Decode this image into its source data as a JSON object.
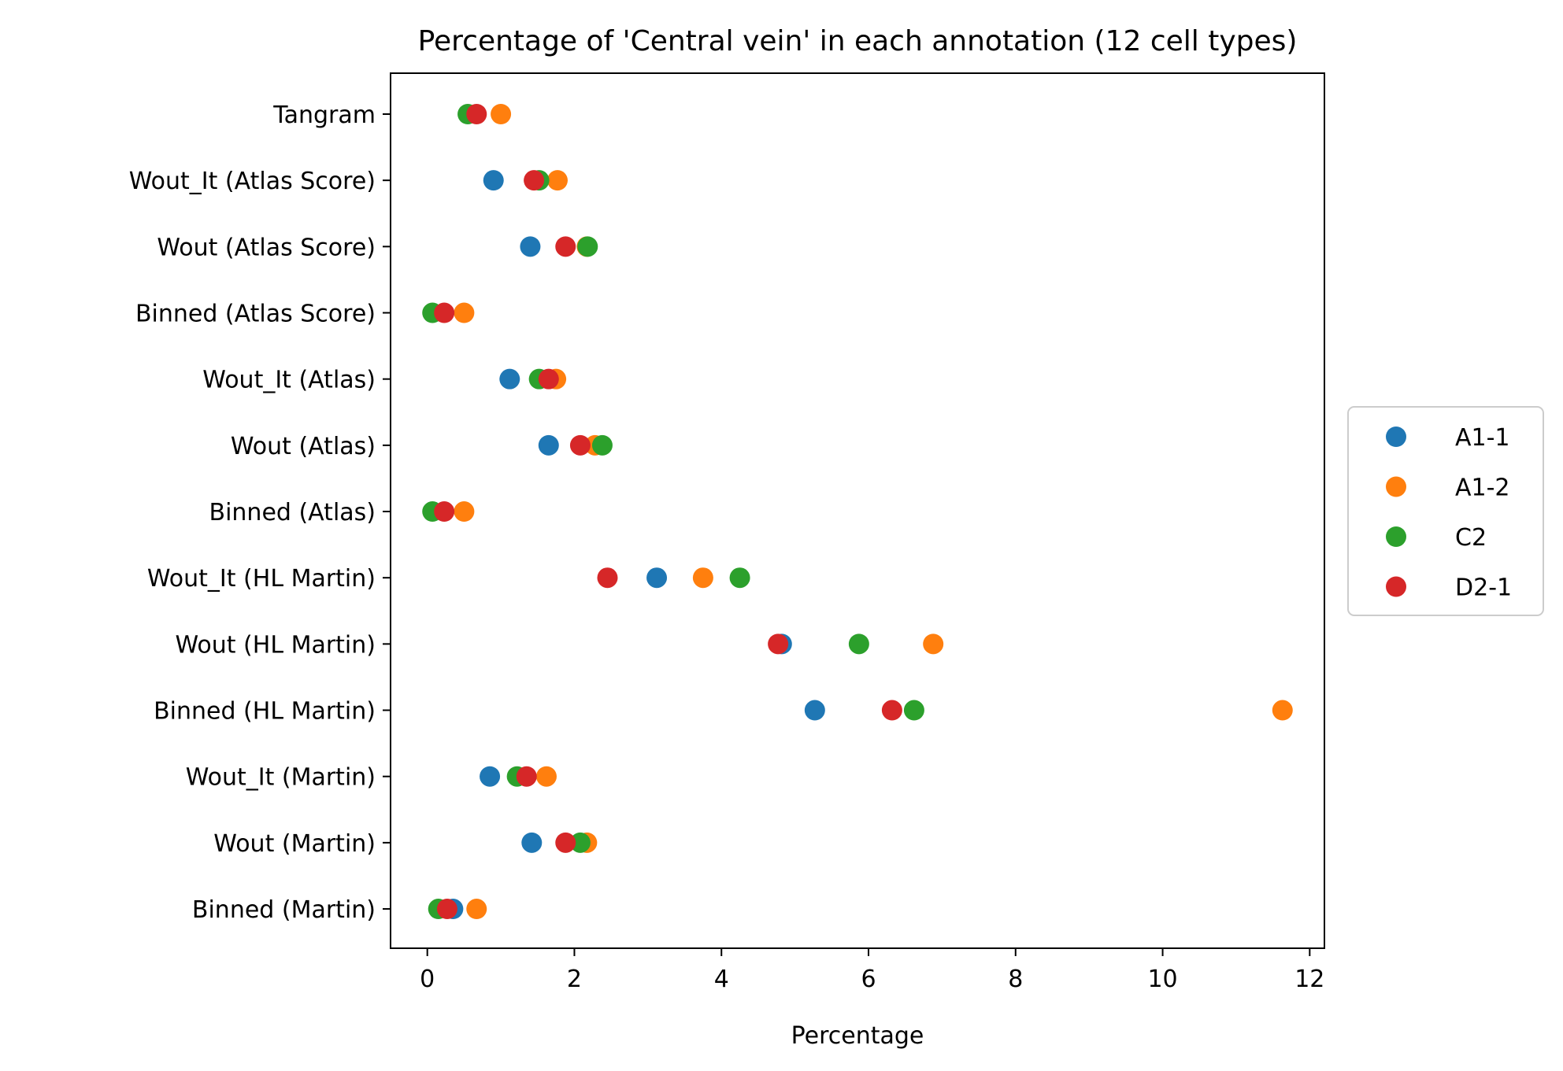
{
  "chart_data": {
    "type": "scatter",
    "title": "Percentage of 'Central vein' in each annotation (12 cell types)",
    "xlabel": "Percentage",
    "ylabel": "",
    "xlim": [
      -0.5,
      12.2
    ],
    "xticks": [
      0,
      2,
      4,
      6,
      8,
      10,
      12
    ],
    "categories": [
      "Tangram",
      "Wout_It (Atlas Score)",
      "Wout (Atlas Score)",
      "Binned (Atlas Score)",
      "Wout_It (Atlas)",
      "Wout (Atlas)",
      "Binned (Atlas)",
      "Wout_It (HL Martin)",
      "Wout (HL Martin)",
      "Binned (HL Martin)",
      "Wout_It (Martin)",
      "Wout (Martin)",
      "Binned (Martin)"
    ],
    "series": [
      {
        "name": "A1-1",
        "color": "#1f77b4",
        "values": [
          null,
          0.9,
          1.4,
          null,
          1.12,
          1.65,
          null,
          3.12,
          4.82,
          5.27,
          0.85,
          1.42,
          0.35
        ]
      },
      {
        "name": "A1-2",
        "color": "#ff7f0e",
        "values": [
          1.0,
          1.77,
          2.17,
          0.5,
          1.75,
          2.28,
          0.5,
          3.75,
          6.88,
          11.63,
          1.62,
          2.17,
          0.67
        ]
      },
      {
        "name": "C2",
        "color": "#2ca02c",
        "values": [
          0.55,
          1.52,
          2.18,
          0.07,
          1.52,
          2.38,
          0.07,
          4.25,
          5.87,
          6.62,
          1.22,
          2.08,
          0.15
        ]
      },
      {
        "name": "D2-1",
        "color": "#d62728",
        "values": [
          0.67,
          1.45,
          1.88,
          0.23,
          1.65,
          2.08,
          0.23,
          2.45,
          4.77,
          6.32,
          1.35,
          1.88,
          0.27
        ]
      }
    ],
    "legend_position": "center-right",
    "grid": false
  }
}
